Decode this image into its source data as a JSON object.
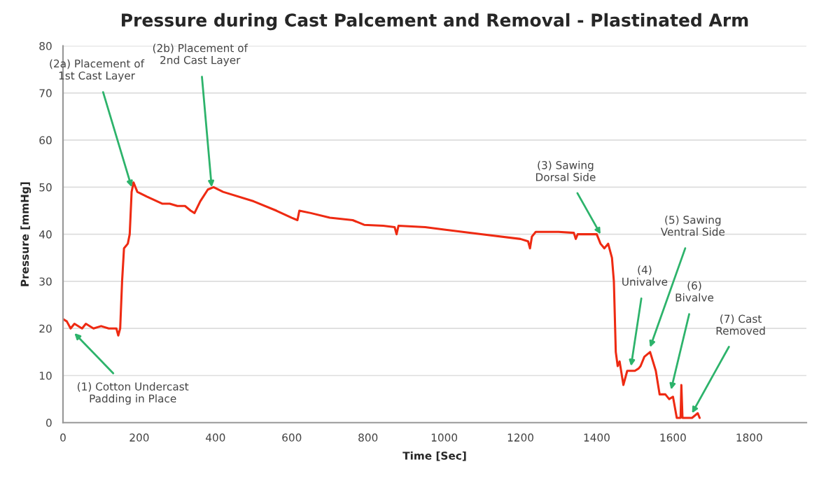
{
  "chart_data": {
    "type": "line",
    "title": "Pressure during Cast Palcement and Removal - Plastinated Arm",
    "xlabel": "Time [Sec]",
    "ylabel": "Pressure [mmHg]",
    "xlim": [
      0,
      1950
    ],
    "xticks": [
      0,
      200,
      400,
      600,
      800,
      1000,
      1200,
      1400,
      1600,
      1800
    ],
    "ylim": [
      0,
      80
    ],
    "yticks": [
      0,
      10,
      20,
      30,
      40,
      50,
      60,
      70,
      80
    ],
    "grid": "y",
    "legend": false,
    "marker": "none",
    "line_style": "solid",
    "series": [
      {
        "color": "#ee2a12",
        "x": [
          0,
          10,
          20,
          30,
          50,
          60,
          80,
          100,
          120,
          140,
          145,
          150,
          155,
          160,
          170,
          175,
          180,
          185,
          195,
          220,
          260,
          280,
          300,
          320,
          335,
          345,
          360,
          380,
          395,
          420,
          500,
          560,
          600,
          615,
          620,
          650,
          700,
          760,
          790,
          840,
          870,
          875,
          880,
          950,
          1000,
          1100,
          1200,
          1220,
          1225,
          1230,
          1240,
          1300,
          1340,
          1345,
          1350,
          1400,
          1410,
          1420,
          1430,
          1440,
          1445,
          1450,
          1455,
          1460,
          1470,
          1480,
          1500,
          1510,
          1515,
          1525,
          1540,
          1555,
          1565,
          1580,
          1590,
          1600,
          1610,
          1620,
          1622,
          1625,
          1650,
          1665,
          1670
        ],
        "values": [
          22,
          21.5,
          20,
          21,
          20,
          21,
          20,
          20.5,
          20,
          20,
          18.5,
          20,
          30,
          37,
          38,
          40,
          49,
          51,
          49,
          48,
          46.5,
          46.5,
          46,
          46,
          45,
          44.5,
          47,
          49.5,
          50,
          49,
          47,
          45,
          43.5,
          43,
          45,
          44.5,
          43.5,
          43,
          42,
          41.8,
          41.5,
          40,
          41.8,
          41.5,
          41,
          40,
          39,
          38.5,
          37,
          39.5,
          40.5,
          40.5,
          40.3,
          39,
          40,
          40,
          38,
          37,
          38,
          35,
          30,
          15,
          12,
          13,
          8,
          11,
          11,
          11.5,
          12,
          14,
          15,
          11,
          6,
          6,
          5,
          5.5,
          1,
          1,
          8,
          1,
          1,
          2,
          1
        ]
      }
    ],
    "annotations": [
      {
        "text": "(1) Cotton Undercast\nPadding in Place",
        "x": 30,
        "y": 19
      },
      {
        "text": "(2a) Placement of\n1st Cast Layer",
        "x": 180,
        "y": 50
      },
      {
        "text": "(2b) Placement of\n2nd Cast Layer",
        "x": 390,
        "y": 50
      },
      {
        "text": "(3) Sawing\nDorsal Side",
        "x": 1410,
        "y": 40
      },
      {
        "text": "(4)\nUnivalve",
        "x": 1490,
        "y": 12
      },
      {
        "text": "(5) Sawing\nVentral Side",
        "x": 1540,
        "y": 16
      },
      {
        "text": "(6)\nBivalve",
        "x": 1595,
        "y": 7
      },
      {
        "text": "(7) Cast\nRemoved",
        "x": 1650,
        "y": 2
      }
    ]
  }
}
